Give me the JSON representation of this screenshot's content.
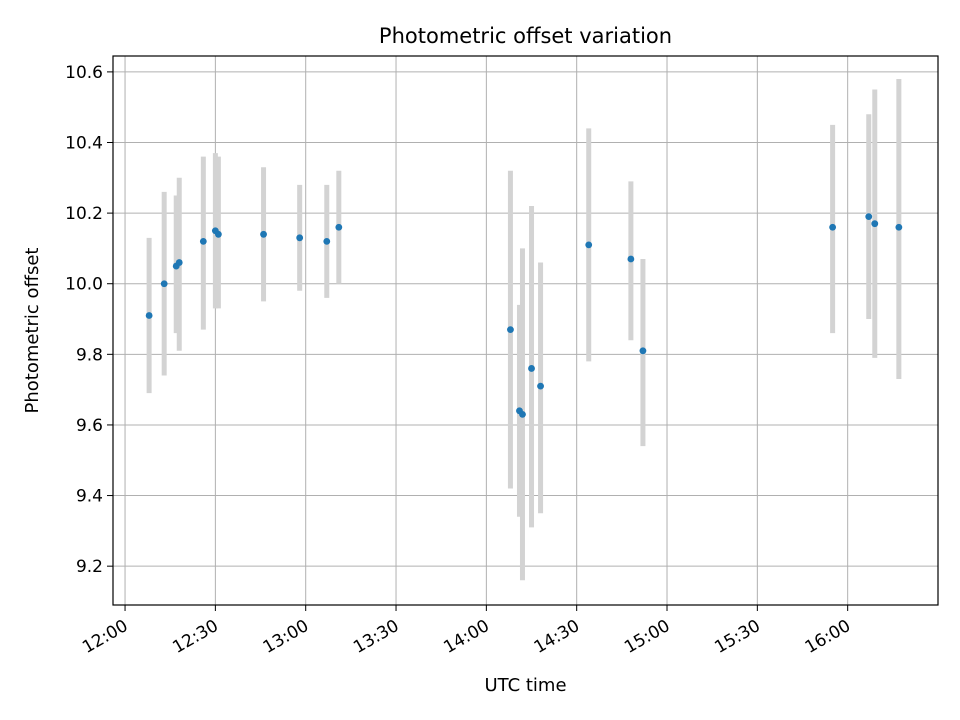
{
  "chart_data": {
    "type": "scatter",
    "title": "Photometric offset variation",
    "xlabel": "UTC time",
    "ylabel": "Photometric offset",
    "x_tick_labels": [
      "12:00",
      "12:30",
      "13:00",
      "13:30",
      "14:00",
      "14:30",
      "15:00",
      "15:30",
      "16:00"
    ],
    "y_tick_labels": [
      "9.2",
      "9.4",
      "9.6",
      "9.8",
      "10.0",
      "10.2",
      "10.4",
      "10.6"
    ],
    "xlim": [
      "11:56",
      "16:30"
    ],
    "ylim": [
      9.09,
      10.645
    ],
    "grid": true,
    "x_tick_rotation": "30-degrees",
    "point_color": "#1f77b4",
    "errorbar_color": "#d3d3d3",
    "points": [
      {
        "x": "12:08",
        "y": 9.91,
        "low": 9.69,
        "high": 10.13
      },
      {
        "x": "12:13",
        "y": 10.0,
        "low": 9.74,
        "high": 10.26
      },
      {
        "x": "12:17",
        "y": 10.05,
        "low": 9.86,
        "high": 10.25
      },
      {
        "x": "12:18",
        "y": 10.06,
        "low": 9.81,
        "high": 10.3
      },
      {
        "x": "12:26",
        "y": 10.12,
        "low": 9.87,
        "high": 10.36
      },
      {
        "x": "12:30",
        "y": 10.15,
        "low": 9.93,
        "high": 10.37
      },
      {
        "x": "12:31",
        "y": 10.14,
        "low": 9.93,
        "high": 10.36
      },
      {
        "x": "12:46",
        "y": 10.14,
        "low": 9.95,
        "high": 10.33
      },
      {
        "x": "12:58",
        "y": 10.13,
        "low": 9.98,
        "high": 10.28
      },
      {
        "x": "13:07",
        "y": 10.12,
        "low": 9.96,
        "high": 10.28
      },
      {
        "x": "13:11",
        "y": 10.16,
        "low": 10.0,
        "high": 10.32
      },
      {
        "x": "14:08",
        "y": 9.87,
        "low": 9.42,
        "high": 10.32
      },
      {
        "x": "14:11",
        "y": 9.64,
        "low": 9.34,
        "high": 9.94
      },
      {
        "x": "14:12",
        "y": 9.63,
        "low": 9.16,
        "high": 10.1
      },
      {
        "x": "14:15",
        "y": 9.76,
        "low": 9.31,
        "high": 10.22
      },
      {
        "x": "14:18",
        "y": 9.71,
        "low": 9.35,
        "high": 10.06
      },
      {
        "x": "14:34",
        "y": 10.11,
        "low": 9.78,
        "high": 10.44
      },
      {
        "x": "14:48",
        "y": 10.07,
        "low": 9.84,
        "high": 10.29
      },
      {
        "x": "14:52",
        "y": 9.81,
        "low": 9.54,
        "high": 10.07
      },
      {
        "x": "15:55",
        "y": 10.16,
        "low": 9.86,
        "high": 10.45
      },
      {
        "x": "16:07",
        "y": 10.19,
        "low": 9.9,
        "high": 10.48
      },
      {
        "x": "16:09",
        "y": 10.17,
        "low": 9.79,
        "high": 10.55
      },
      {
        "x": "16:17",
        "y": 10.16,
        "low": 9.73,
        "high": 10.58
      }
    ]
  }
}
